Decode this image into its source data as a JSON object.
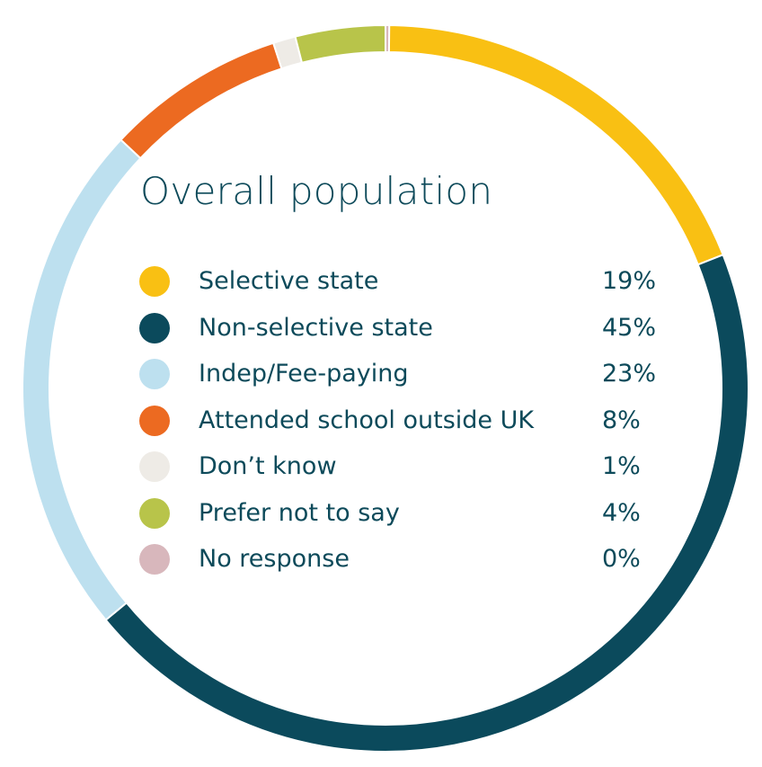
{
  "chart_data": {
    "type": "pie",
    "title": "Overall population",
    "donut": true,
    "categories": [
      "Selective state",
      "Non-selective state",
      "Indep/Fee-paying",
      "Attended school outside UK",
      "Don’t know",
      "Prefer not to say",
      "No response"
    ],
    "values": [
      19,
      45,
      23,
      8,
      1,
      4,
      0
    ],
    "value_labels": [
      "19%",
      "45%",
      "23%",
      "8%",
      "1%",
      "4%",
      "0%"
    ],
    "colors": [
      "#f9c013",
      "#0b4a5c",
      "#bde0ef",
      "#ec6a21",
      "#eeebe6",
      "#b8c44a",
      "#d8b7bc"
    ],
    "legend_position": "center"
  }
}
